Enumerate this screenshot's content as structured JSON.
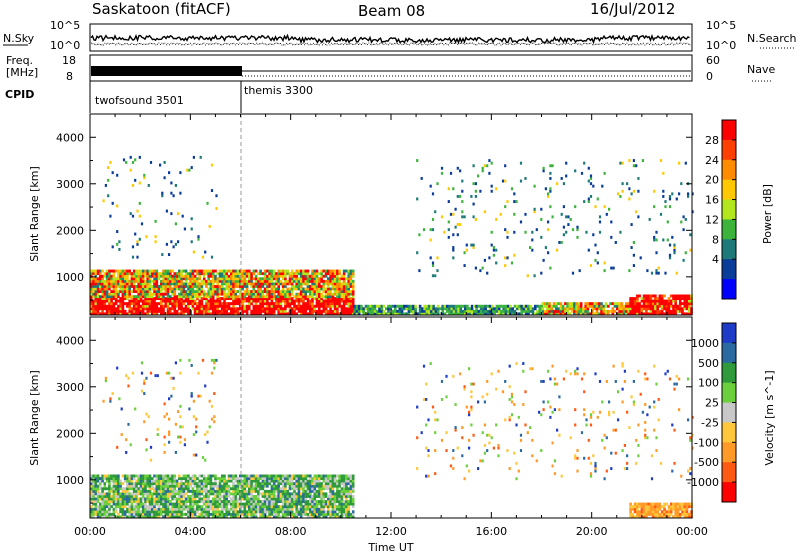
{
  "header": {
    "station": "Saskatoon (fitACF)",
    "beam": "Beam 08",
    "date": "16/Jul/2012"
  },
  "top_panels": {
    "nsky_label": "N.Sky",
    "nsky_ticks": [
      "10^5",
      "10^0"
    ],
    "nsearch_label": "N.Search",
    "nsearch_ticks": [
      "10^5",
      "10^0"
    ],
    "freq_label_line1": "Freq.",
    "freq_label_line2": "[MHz]",
    "freq_ticks": [
      "18",
      "8"
    ],
    "nave_label": "Nave",
    "nave_ticks": [
      "60",
      "0"
    ],
    "cpid_label": "CPID",
    "cpid_segments": [
      {
        "name": "twofsound 3501"
      },
      {
        "name": "themis 3300"
      }
    ]
  },
  "axes": {
    "ylabel": "Slant Range [km]",
    "xlabel": "Time UT",
    "y_ticks": [
      "4000",
      "3000",
      "2000",
      "1000"
    ],
    "x_ticks": [
      "00:00",
      "04:00",
      "08:00",
      "12:00",
      "16:00",
      "20:00",
      "00:00"
    ]
  },
  "chart_data": [
    {
      "type": "heatmap",
      "title": "Power",
      "xlabel": "Time UT",
      "ylabel": "Slant Range [km]",
      "xlim_hours": [
        0,
        24
      ],
      "ylim": [
        180,
        4500
      ],
      "colorbar": {
        "label": "Power [dB]",
        "ticks": [
          "28",
          "24",
          "20",
          "16",
          "12",
          "8",
          "4"
        ],
        "colors": [
          "#ff0000",
          "#ff4000",
          "#ff8c00",
          "#ffc800",
          "#b4e61e",
          "#3cb43c",
          "#1e7a78",
          "#0a3c9a",
          "#0000ff"
        ]
      },
      "regions": [
        {
          "t0": 0.0,
          "t1": 10.5,
          "r0": 180,
          "r1": 550,
          "level": "high"
        },
        {
          "t0": 0.0,
          "t1": 10.5,
          "r0": 550,
          "r1": 1150,
          "level": "mid"
        },
        {
          "t0": 10.5,
          "t1": 18.0,
          "r0": 180,
          "r1": 400,
          "level": "low"
        },
        {
          "t0": 18.0,
          "t1": 21.5,
          "r0": 180,
          "r1": 450,
          "level": "mid"
        },
        {
          "t0": 21.5,
          "t1": 24.0,
          "r0": 180,
          "r1": 600,
          "level": "high"
        },
        {
          "t0": 0.5,
          "t1": 5.0,
          "r0": 1400,
          "r1": 3600,
          "level": "sparse"
        },
        {
          "t0": 13.0,
          "t1": 24.0,
          "r0": 1000,
          "r1": 3500,
          "level": "sparse"
        }
      ]
    },
    {
      "type": "heatmap",
      "title": "Velocity",
      "xlabel": "Time UT",
      "ylabel": "Slant Range [km]",
      "xlim_hours": [
        0,
        24
      ],
      "ylim": [
        180,
        4500
      ],
      "colorbar": {
        "label": "Velocity [m s^-1]",
        "ticks": [
          "1000",
          "500",
          "100",
          "25",
          "-25",
          "-100",
          "-500",
          "-1000"
        ],
        "colors": [
          "#1e3cc8",
          "#2a6aa0",
          "#2e9a3c",
          "#6ccf3c",
          "#c8c8c8",
          "#ffc83c",
          "#ff9a28",
          "#ff5a14",
          "#ff0000"
        ]
      },
      "regions": [
        {
          "t0": 0.0,
          "t1": 10.5,
          "r0": 180,
          "r1": 1100,
          "level": "near-zero"
        },
        {
          "t0": 21.5,
          "t1": 24.0,
          "r0": 180,
          "r1": 500,
          "level": "negative"
        },
        {
          "t0": 0.5,
          "t1": 5.0,
          "r0": 1400,
          "r1": 3600,
          "level": "sparse"
        },
        {
          "t0": 13.0,
          "t1": 24.0,
          "r0": 1000,
          "r1": 3500,
          "level": "sparse"
        }
      ]
    }
  ]
}
